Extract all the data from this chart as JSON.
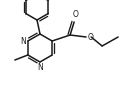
{
  "bg_color": "#ffffff",
  "line_color": "#1a1a1a",
  "line_width": 1.1,
  "figsize": [
    1.22,
    1.08
  ],
  "dpi": 100,
  "xlim": [
    0,
    122
  ],
  "ylim": [
    0,
    108
  ]
}
